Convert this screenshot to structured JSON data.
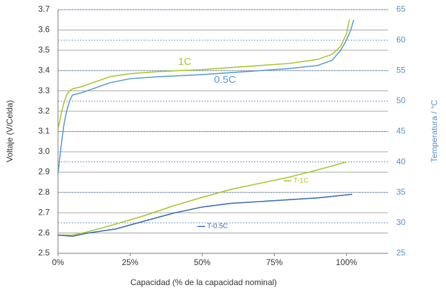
{
  "chart_data": {
    "type": "line",
    "x_label": "Capacidad (% de la capacidad nominal)",
    "y_label": "Voltaje (V/Celda)",
    "y2_label": "Temperatura / °C",
    "xlim": [
      0,
      114.4
    ],
    "xticks": [
      {
        "value": 0,
        "label": "0%"
      },
      {
        "value": 25,
        "label": "25%"
      },
      {
        "value": 50,
        "label": "50%"
      },
      {
        "value": 75,
        "label": "75%"
      },
      {
        "value": 100,
        "label": "100%"
      }
    ],
    "ylim": [
      2.5,
      3.7
    ],
    "yticks": [
      2.5,
      2.6,
      2.7,
      2.8,
      2.9,
      {
        "value": 3,
        "label": "3.0"
      },
      3.1,
      3.2,
      3.3,
      3.4,
      3.5,
      3.6,
      3.7
    ],
    "y2lim": [
      25,
      65
    ],
    "y2ticks": [
      25,
      30,
      35,
      40,
      45,
      50,
      55,
      60,
      65
    ],
    "grid": true,
    "series": [
      {
        "name": "1C",
        "color": "#a8c62a",
        "x": [
          0,
          1,
          2,
          3,
          4,
          5,
          8,
          12,
          18,
          25,
          35,
          50,
          60,
          70,
          80,
          90,
          95,
          98,
          100,
          101
        ],
        "values": [
          3.11,
          3.18,
          3.24,
          3.28,
          3.3,
          3.31,
          3.32,
          3.34,
          3.37,
          3.385,
          3.395,
          3.405,
          3.415,
          3.425,
          3.435,
          3.455,
          3.48,
          3.52,
          3.58,
          3.65
        ]
      },
      {
        "name": "0.5C",
        "color": "#5b9bd5",
        "x": [
          0,
          1,
          2,
          3,
          4,
          5,
          8,
          12,
          18,
          25,
          35,
          50,
          60,
          70,
          80,
          90,
          95,
          98,
          100,
          101.5,
          102.5
        ],
        "values": [
          2.89,
          3.02,
          3.13,
          3.2,
          3.25,
          3.28,
          3.29,
          3.31,
          3.34,
          3.36,
          3.37,
          3.38,
          3.39,
          3.4,
          3.41,
          3.425,
          3.45,
          3.5,
          3.55,
          3.6,
          3.65
        ]
      },
      {
        "name": "T-1C",
        "color": "#a8c62a",
        "axis": "y2",
        "x": [
          0,
          5,
          10,
          20,
          30,
          40,
          50,
          60,
          70,
          80,
          90,
          100
        ],
        "values": [
          28,
          28,
          28.5,
          29.8,
          31.2,
          32.8,
          34.2,
          35.5,
          36.5,
          37.5,
          38.7,
          40
        ]
      },
      {
        "name": "T-0.5C",
        "color": "#3d6bb3",
        "axis": "y2",
        "x": [
          0,
          5,
          10,
          20,
          30,
          40,
          50,
          60,
          70,
          80,
          90,
          102
        ],
        "values": [
          28,
          27.8,
          28.3,
          29,
          30.3,
          31.6,
          32.6,
          33.2,
          33.5,
          33.8,
          34.1,
          34.7
        ]
      }
    ]
  }
}
